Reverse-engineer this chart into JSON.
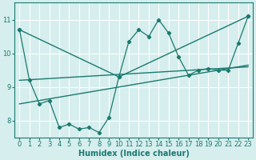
{
  "xlabel": "Humidex (Indice chaleur)",
  "background_color": "#d6eeee",
  "line_color": "#1a7a6e",
  "grid_color": "#ffffff",
  "xlim": [
    -0.5,
    23.5
  ],
  "ylim": [
    7.5,
    11.5
  ],
  "yticks": [
    8,
    9,
    10,
    11
  ],
  "xticks": [
    0,
    1,
    2,
    3,
    4,
    5,
    6,
    7,
    8,
    9,
    10,
    11,
    12,
    13,
    14,
    15,
    16,
    17,
    18,
    19,
    20,
    21,
    22,
    23
  ],
  "series1_x": [
    0,
    1,
    2,
    3,
    4,
    5,
    6,
    7,
    8,
    9,
    10,
    11,
    12,
    13,
    14,
    15,
    16,
    17,
    18,
    19,
    20,
    21,
    22,
    23
  ],
  "series1_y": [
    10.7,
    9.2,
    8.5,
    8.6,
    7.8,
    7.9,
    7.75,
    7.8,
    7.65,
    8.1,
    9.3,
    10.35,
    10.7,
    10.5,
    11.0,
    10.6,
    9.9,
    9.35,
    9.5,
    9.55,
    9.5,
    9.5,
    10.3,
    11.1
  ],
  "series2_x": [
    0,
    10,
    23
  ],
  "series2_y": [
    10.7,
    9.3,
    11.1
  ],
  "series3_x": [
    0,
    23
  ],
  "series3_y": [
    8.5,
    9.65
  ],
  "series4_x": [
    0,
    23
  ],
  "series4_y": [
    9.2,
    9.6
  ]
}
